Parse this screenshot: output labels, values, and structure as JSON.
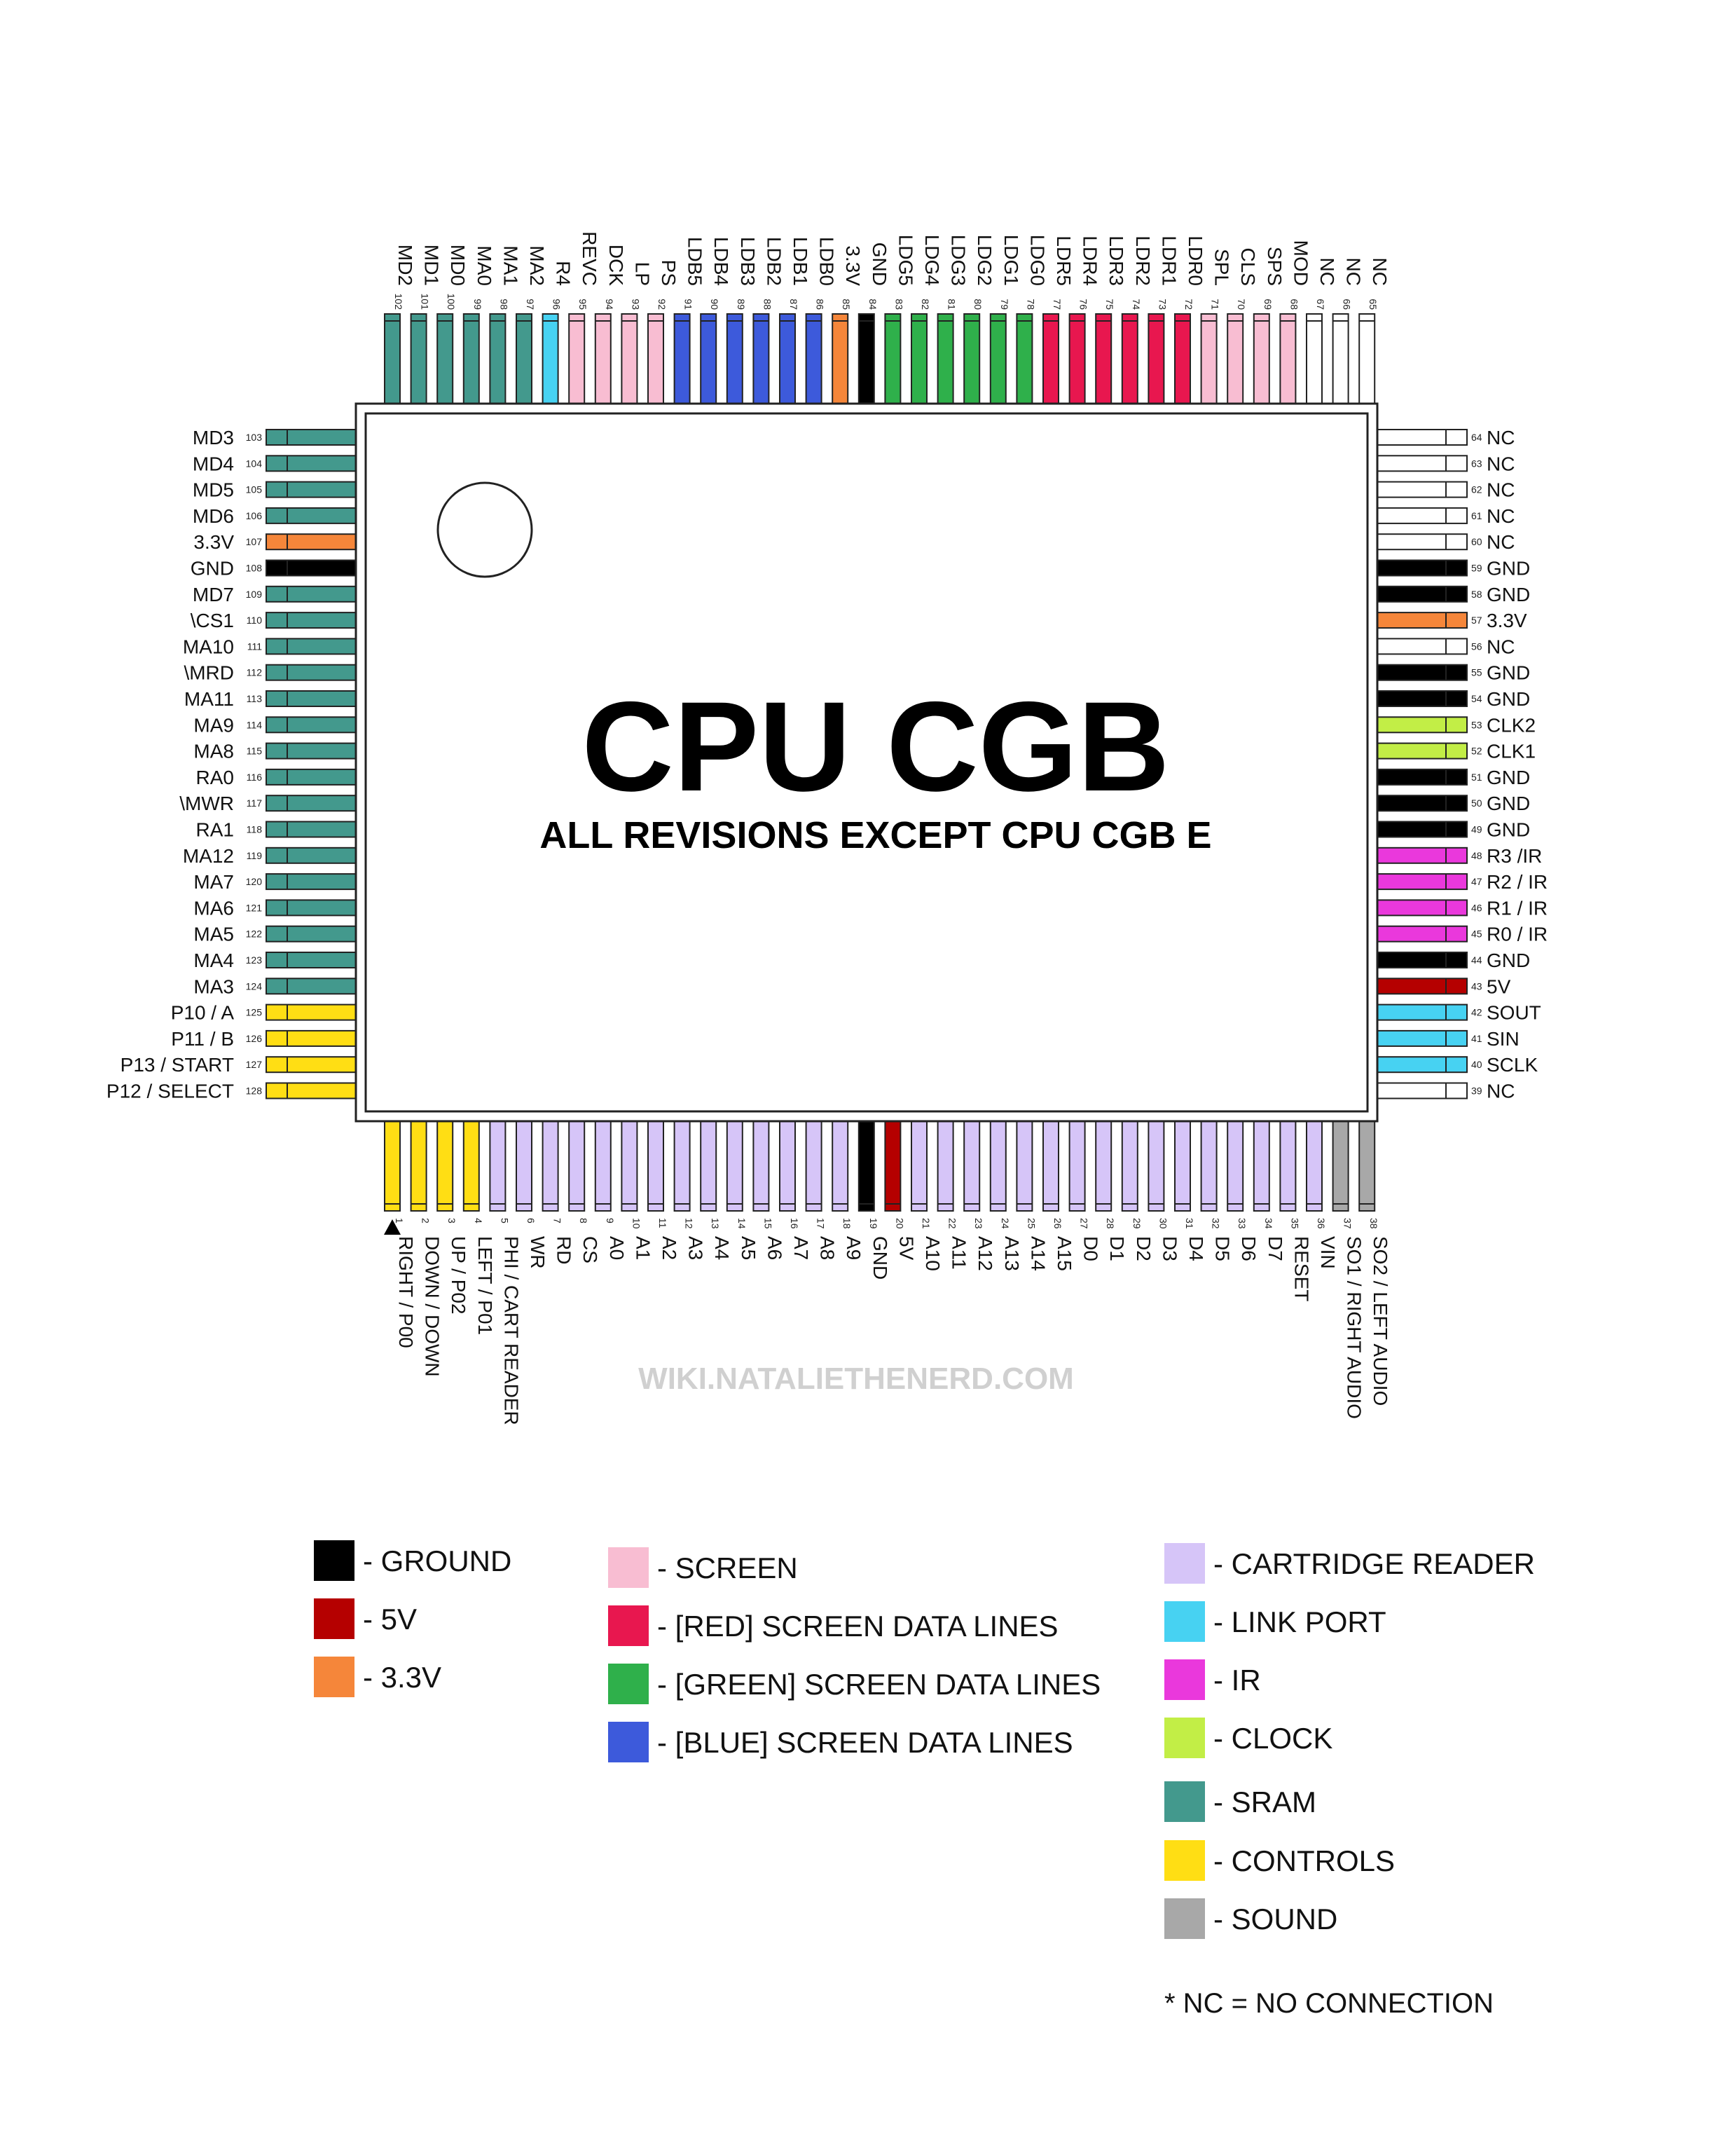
{
  "chip": {
    "title": "CPU CGB",
    "subtitle": "ALL REVISIONS EXCEPT CPU CGB E"
  },
  "watermark": "WIKI.NATALIETHENERD.COM",
  "colors": {
    "ground": "#000000",
    "v5": "#b50000",
    "v33": "#f5863a",
    "screen": "#f8bdd2",
    "red": "#e8174f",
    "green": "#2fb04b",
    "blue": "#3d5adb",
    "cart": "#d6c5f8",
    "link": "#47d2f2",
    "ir": "#ea38dc",
    "clock": "#c2ee46",
    "sram": "#43998d",
    "controls": "#ffde14",
    "sound": "#a8a8a8",
    "nc": "#ffffff"
  },
  "pins": {
    "top": [
      {
        "n": "102",
        "label": "MD2",
        "type": "sram"
      },
      {
        "n": "101",
        "label": "MD1",
        "type": "sram"
      },
      {
        "n": "100",
        "label": "MD0",
        "type": "sram"
      },
      {
        "n": "99",
        "label": "MA0",
        "type": "sram"
      },
      {
        "n": "98",
        "label": "MA1",
        "type": "sram"
      },
      {
        "n": "97",
        "label": "MA2",
        "type": "sram"
      },
      {
        "n": "96",
        "label": "R4",
        "type": "link"
      },
      {
        "n": "95",
        "label": "REVC",
        "type": "screen"
      },
      {
        "n": "94",
        "label": "DCK",
        "type": "screen"
      },
      {
        "n": "93",
        "label": "LP",
        "type": "screen"
      },
      {
        "n": "92",
        "label": "PS",
        "type": "screen"
      },
      {
        "n": "91",
        "label": "LDB5",
        "type": "blue"
      },
      {
        "n": "90",
        "label": "LDB4",
        "type": "blue"
      },
      {
        "n": "89",
        "label": "LDB3",
        "type": "blue"
      },
      {
        "n": "88",
        "label": "LDB2",
        "type": "blue"
      },
      {
        "n": "87",
        "label": "LDB1",
        "type": "blue"
      },
      {
        "n": "86",
        "label": "LDB0",
        "type": "blue"
      },
      {
        "n": "85",
        "label": "3.3V",
        "type": "v33"
      },
      {
        "n": "84",
        "label": "GND",
        "type": "ground"
      },
      {
        "n": "83",
        "label": "LDG5",
        "type": "green"
      },
      {
        "n": "82",
        "label": "LDG4",
        "type": "green"
      },
      {
        "n": "81",
        "label": "LDG3",
        "type": "green"
      },
      {
        "n": "80",
        "label": "LDG2",
        "type": "green"
      },
      {
        "n": "79",
        "label": "LDG1",
        "type": "green"
      },
      {
        "n": "78",
        "label": "LDG0",
        "type": "green"
      },
      {
        "n": "77",
        "label": "LDR5",
        "type": "red"
      },
      {
        "n": "76",
        "label": "LDR4",
        "type": "red"
      },
      {
        "n": "75",
        "label": "LDR3",
        "type": "red"
      },
      {
        "n": "74",
        "label": "LDR2",
        "type": "red"
      },
      {
        "n": "73",
        "label": "LDR1",
        "type": "red"
      },
      {
        "n": "72",
        "label": "LDR0",
        "type": "red"
      },
      {
        "n": "71",
        "label": "SPL",
        "type": "screen"
      },
      {
        "n": "70",
        "label": "CLS",
        "type": "screen"
      },
      {
        "n": "69",
        "label": "SPS",
        "type": "screen"
      },
      {
        "n": "68",
        "label": "MOD",
        "type": "screen"
      },
      {
        "n": "67",
        "label": "NC",
        "type": "nc"
      },
      {
        "n": "66",
        "label": "NC",
        "type": "nc"
      },
      {
        "n": "65",
        "label": "NC",
        "type": "nc"
      }
    ],
    "left": [
      {
        "n": "103",
        "label": "MD3",
        "type": "sram"
      },
      {
        "n": "104",
        "label": "MD4",
        "type": "sram"
      },
      {
        "n": "105",
        "label": "MD5",
        "type": "sram"
      },
      {
        "n": "106",
        "label": "MD6",
        "type": "sram"
      },
      {
        "n": "107",
        "label": "3.3V",
        "type": "v33"
      },
      {
        "n": "108",
        "label": "GND",
        "type": "ground"
      },
      {
        "n": "109",
        "label": "MD7",
        "type": "sram"
      },
      {
        "n": "110",
        "label": "\\CS1",
        "type": "sram"
      },
      {
        "n": "111",
        "label": "MA10",
        "type": "sram"
      },
      {
        "n": "112",
        "label": "\\MRD",
        "type": "sram"
      },
      {
        "n": "113",
        "label": "MA11",
        "type": "sram"
      },
      {
        "n": "114",
        "label": "MA9",
        "type": "sram"
      },
      {
        "n": "115",
        "label": "MA8",
        "type": "sram"
      },
      {
        "n": "116",
        "label": "RA0",
        "type": "sram"
      },
      {
        "n": "117",
        "label": "\\MWR",
        "type": "sram"
      },
      {
        "n": "118",
        "label": "RA1",
        "type": "sram"
      },
      {
        "n": "119",
        "label": "MA12",
        "type": "sram"
      },
      {
        "n": "120",
        "label": "MA7",
        "type": "sram"
      },
      {
        "n": "121",
        "label": "MA6",
        "type": "sram"
      },
      {
        "n": "122",
        "label": "MA5",
        "type": "sram"
      },
      {
        "n": "123",
        "label": "MA4",
        "type": "sram"
      },
      {
        "n": "124",
        "label": "MA3",
        "type": "sram"
      },
      {
        "n": "125",
        "label": "P10 / A",
        "type": "controls"
      },
      {
        "n": "126",
        "label": "P11 / B",
        "type": "controls"
      },
      {
        "n": "127",
        "label": "P13 / START",
        "type": "controls"
      },
      {
        "n": "128",
        "label": "P12 / SELECT",
        "type": "controls"
      }
    ],
    "right": [
      {
        "n": "64",
        "label": "NC",
        "type": "nc"
      },
      {
        "n": "63",
        "label": "NC",
        "type": "nc"
      },
      {
        "n": "62",
        "label": "NC",
        "type": "nc"
      },
      {
        "n": "61",
        "label": "NC",
        "type": "nc"
      },
      {
        "n": "60",
        "label": "NC",
        "type": "nc"
      },
      {
        "n": "59",
        "label": "GND",
        "type": "ground"
      },
      {
        "n": "58",
        "label": "GND",
        "type": "ground"
      },
      {
        "n": "57",
        "label": "3.3V",
        "type": "v33"
      },
      {
        "n": "56",
        "label": "NC",
        "type": "nc"
      },
      {
        "n": "55",
        "label": "GND",
        "type": "ground"
      },
      {
        "n": "54",
        "label": "GND",
        "type": "ground"
      },
      {
        "n": "53",
        "label": "CLK2",
        "type": "clock"
      },
      {
        "n": "52",
        "label": "CLK1",
        "type": "clock"
      },
      {
        "n": "51",
        "label": "GND",
        "type": "ground"
      },
      {
        "n": "50",
        "label": "GND",
        "type": "ground"
      },
      {
        "n": "49",
        "label": "GND",
        "type": "ground"
      },
      {
        "n": "48",
        "label": "R3 /IR",
        "type": "ir"
      },
      {
        "n": "47",
        "label": "R2 / IR",
        "type": "ir"
      },
      {
        "n": "46",
        "label": "R1 / IR",
        "type": "ir"
      },
      {
        "n": "45",
        "label": "R0 / IR",
        "type": "ir"
      },
      {
        "n": "44",
        "label": "GND",
        "type": "ground"
      },
      {
        "n": "43",
        "label": "5V",
        "type": "v5"
      },
      {
        "n": "42",
        "label": "SOUT",
        "type": "link"
      },
      {
        "n": "41",
        "label": "SIN",
        "type": "link"
      },
      {
        "n": "40",
        "label": "SCLK",
        "type": "link"
      },
      {
        "n": "39",
        "label": "NC",
        "type": "nc"
      }
    ],
    "bottom": [
      {
        "n": "1",
        "label": "RIGHT / P00",
        "type": "controls"
      },
      {
        "n": "2",
        "label": "DOWN / DOWN",
        "type": "controls"
      },
      {
        "n": "3",
        "label": "UP / P02",
        "type": "controls"
      },
      {
        "n": "4",
        "label": "LEFT / P01",
        "type": "controls"
      },
      {
        "n": "5",
        "label": "PHI / CART READER",
        "type": "cart"
      },
      {
        "n": "6",
        "label": "WR",
        "type": "cart"
      },
      {
        "n": "7",
        "label": "RD",
        "type": "cart"
      },
      {
        "n": "8",
        "label": "CS",
        "type": "cart"
      },
      {
        "n": "9",
        "label": "A0",
        "type": "cart"
      },
      {
        "n": "10",
        "label": "A1",
        "type": "cart"
      },
      {
        "n": "11",
        "label": "A2",
        "type": "cart"
      },
      {
        "n": "12",
        "label": "A3",
        "type": "cart"
      },
      {
        "n": "13",
        "label": "A4",
        "type": "cart"
      },
      {
        "n": "14",
        "label": "A5",
        "type": "cart"
      },
      {
        "n": "15",
        "label": "A6",
        "type": "cart"
      },
      {
        "n": "16",
        "label": "A7",
        "type": "cart"
      },
      {
        "n": "17",
        "label": "A8",
        "type": "cart"
      },
      {
        "n": "18",
        "label": "A9",
        "type": "cart"
      },
      {
        "n": "19",
        "label": "GND",
        "type": "ground"
      },
      {
        "n": "20",
        "label": "5V",
        "type": "v5"
      },
      {
        "n": "21",
        "label": "A10",
        "type": "cart"
      },
      {
        "n": "22",
        "label": "A11",
        "type": "cart"
      },
      {
        "n": "23",
        "label": "A12",
        "type": "cart"
      },
      {
        "n": "24",
        "label": "A13",
        "type": "cart"
      },
      {
        "n": "25",
        "label": "A14",
        "type": "cart"
      },
      {
        "n": "26",
        "label": "A15",
        "type": "cart"
      },
      {
        "n": "27",
        "label": "D0",
        "type": "cart"
      },
      {
        "n": "28",
        "label": "D1",
        "type": "cart"
      },
      {
        "n": "29",
        "label": "D2",
        "type": "cart"
      },
      {
        "n": "30",
        "label": "D3",
        "type": "cart"
      },
      {
        "n": "31",
        "label": "D4",
        "type": "cart"
      },
      {
        "n": "32",
        "label": "D5",
        "type": "cart"
      },
      {
        "n": "33",
        "label": "D6",
        "type": "cart"
      },
      {
        "n": "34",
        "label": "D7",
        "type": "cart"
      },
      {
        "n": "35",
        "label": "RESET",
        "type": "cart"
      },
      {
        "n": "36",
        "label": "VIN",
        "type": "cart"
      },
      {
        "n": "37",
        "label": "SO1 / RIGHT AUDIO",
        "type": "sound"
      },
      {
        "n": "38",
        "label": "SO2 / LEFT AUDIO",
        "type": "sound"
      }
    ]
  },
  "legend": [
    [
      {
        "type": "ground",
        "label": "- GROUND"
      },
      {
        "type": "v5",
        "label": "- 5V"
      },
      {
        "type": "v33",
        "label": "- 3.3V"
      }
    ],
    [
      {
        "type": "screen",
        "label": "- SCREEN"
      },
      {
        "type": "red",
        "label": "- [RED] SCREEN DATA LINES"
      },
      {
        "type": "green",
        "label": "- [GREEN] SCREEN DATA LINES"
      },
      {
        "type": "blue",
        "label": "- [BLUE] SCREEN DATA LINES"
      }
    ],
    [
      {
        "type": "cart",
        "label": "- CARTRIDGE READER"
      },
      {
        "type": "link",
        "label": "- LINK PORT"
      },
      {
        "type": "ir",
        "label": "- IR"
      },
      {
        "type": "clock",
        "label": "- CLOCK"
      },
      {
        "type": "sram",
        "label": "- SRAM"
      },
      {
        "type": "controls",
        "label": "- CONTROLS"
      },
      {
        "type": "sound",
        "label": "- SOUND"
      }
    ]
  ],
  "footnote": "* NC = NO CONNECTION"
}
